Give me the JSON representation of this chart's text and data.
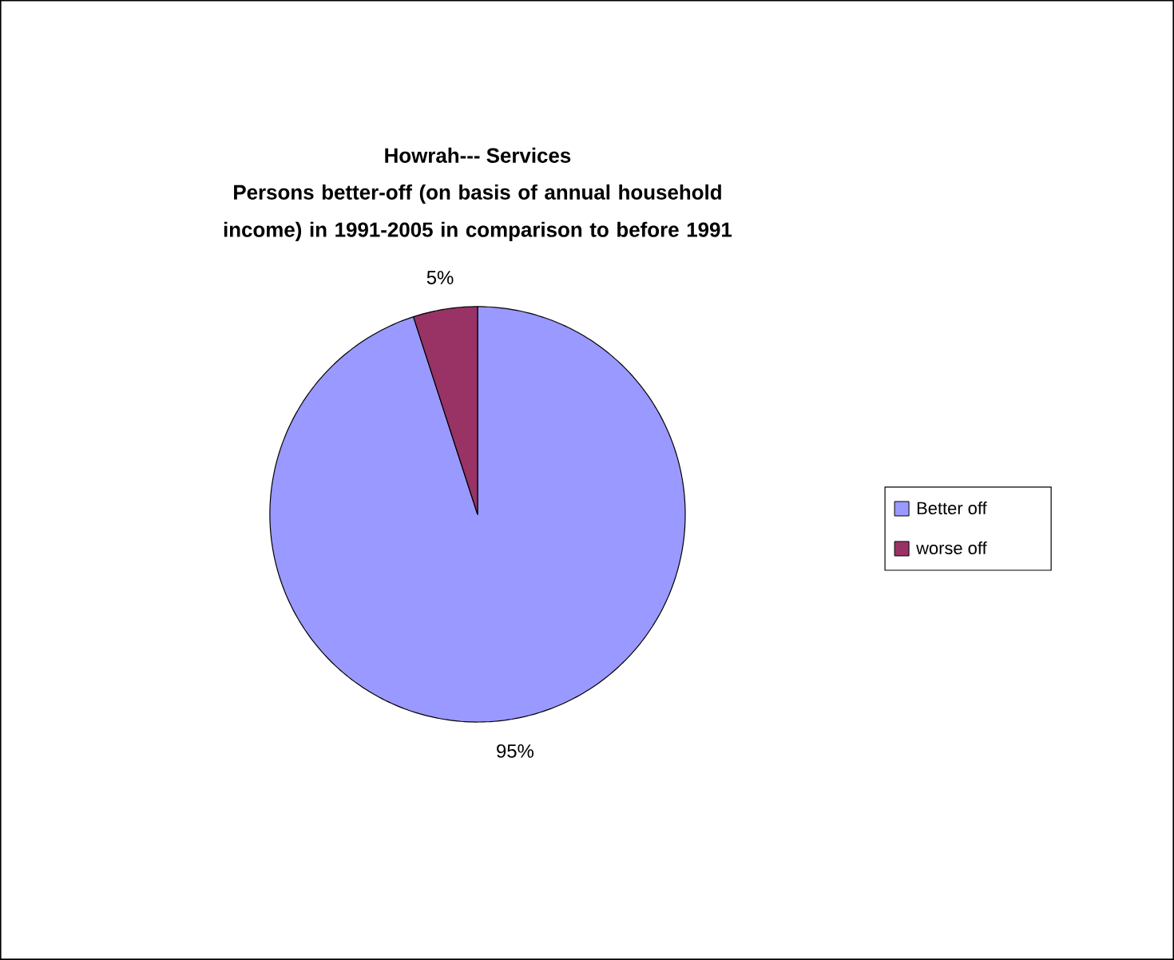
{
  "chart_data": {
    "type": "pie",
    "title": "Howrah--- Services",
    "subtitle": "Persons better-off (on basis of annual household income) in 1991-2005 in comparison to before 1991",
    "categories": [
      "Better off",
      "worse off"
    ],
    "values": [
      95,
      5
    ],
    "colors": [
      "#9999ff",
      "#993366"
    ],
    "value_labels": [
      "95%",
      "5%"
    ],
    "legend": "right"
  }
}
